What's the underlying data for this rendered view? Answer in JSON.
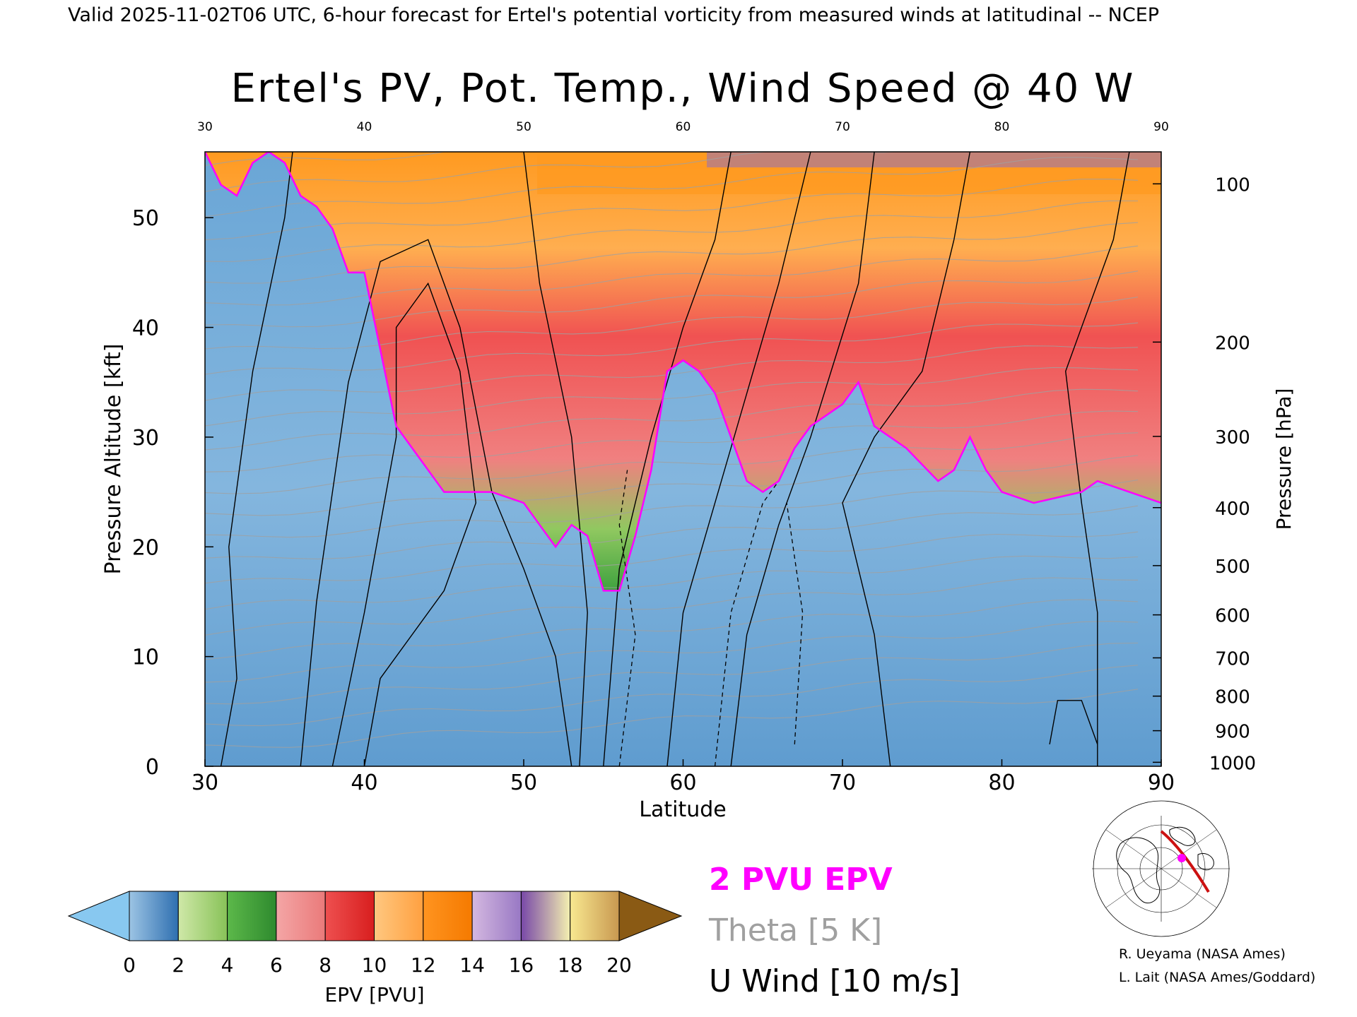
{
  "header": {
    "valid_line": "Valid 2025-11-02T06 UTC, 6-hour forecast for Ertel's potential vorticity from measured winds at latitudinal -- NCEP"
  },
  "chart_data": {
    "type": "heatmap",
    "title": "Ertel's PV, Pot. Temp., Wind Speed @ 40 W",
    "xlabel": "Latitude",
    "ylabel": "Pressure Altitude [kft]",
    "ylabel_right": "Pressure [hPa]",
    "xlim": [
      30,
      90
    ],
    "ylim": [
      0,
      56
    ],
    "x_ticks": [
      30,
      40,
      50,
      60,
      70,
      80,
      90
    ],
    "x_tick_labels": [
      "30",
      "40",
      "50",
      "60",
      "70",
      "80",
      "90"
    ],
    "y_ticks": [
      0,
      10,
      20,
      30,
      40,
      50
    ],
    "y_tick_labels": [
      "0",
      "10",
      "20",
      "30",
      "40",
      "50"
    ],
    "pressure_ticks": [
      {
        "hpa": 100,
        "label": "100"
      },
      {
        "hpa": 200,
        "label": "200"
      },
      {
        "hpa": 300,
        "label": "300"
      },
      {
        "hpa": 400,
        "label": "400"
      },
      {
        "hpa": 500,
        "label": "500"
      },
      {
        "hpa": 600,
        "label": "600"
      },
      {
        "hpa": 700,
        "label": "700"
      },
      {
        "hpa": 800,
        "label": "800"
      },
      {
        "hpa": 900,
        "label": "900"
      },
      {
        "hpa": 1000,
        "label": "1000"
      }
    ],
    "tropopause_2pvu_kft": [
      [
        30,
        56
      ],
      [
        31,
        53
      ],
      [
        32,
        52
      ],
      [
        33,
        55
      ],
      [
        34,
        56
      ],
      [
        35,
        55
      ],
      [
        36,
        52
      ],
      [
        37,
        51
      ],
      [
        38,
        49
      ],
      [
        39,
        45
      ],
      [
        40,
        45
      ],
      [
        41,
        38
      ],
      [
        42,
        31
      ],
      [
        43,
        29
      ],
      [
        44,
        27
      ],
      [
        45,
        25
      ],
      [
        46,
        25
      ],
      [
        48,
        25
      ],
      [
        50,
        24
      ],
      [
        51,
        22
      ],
      [
        52,
        20
      ],
      [
        53,
        22
      ],
      [
        54,
        21
      ],
      [
        55,
        16
      ],
      [
        56,
        16
      ],
      [
        57,
        21
      ],
      [
        58,
        27
      ],
      [
        59,
        36
      ],
      [
        60,
        37
      ],
      [
        61,
        36
      ],
      [
        62,
        34
      ],
      [
        63,
        30
      ],
      [
        64,
        26
      ],
      [
        65,
        25
      ],
      [
        66,
        26
      ],
      [
        67,
        29
      ],
      [
        68,
        31
      ],
      [
        70,
        33
      ],
      [
        71,
        35
      ],
      [
        72,
        31
      ],
      [
        74,
        29
      ],
      [
        76,
        26
      ],
      [
        77,
        27
      ],
      [
        78,
        30
      ],
      [
        79,
        27
      ],
      [
        80,
        25
      ],
      [
        82,
        24
      ],
      [
        85,
        25
      ],
      [
        86,
        26
      ],
      [
        88,
        25
      ],
      [
        90,
        24
      ]
    ],
    "epv_colorbar": {
      "label": "EPV [PVU]",
      "ticks": [
        0,
        2,
        4,
        6,
        8,
        10,
        12,
        14,
        16,
        18,
        20
      ],
      "tick_labels": [
        "0",
        "2",
        "4",
        "6",
        "8",
        "10",
        "12",
        "14",
        "16",
        "18",
        "20"
      ],
      "under_color": "#88c8f0",
      "over_color": "#8a5a14",
      "bins": [
        {
          "from": 0,
          "to": 2,
          "colors": [
            "#9cc4e4",
            "#2e6fb0"
          ]
        },
        {
          "from": 2,
          "to": 4,
          "colors": [
            "#cfe8a8",
            "#88c258"
          ]
        },
        {
          "from": 4,
          "to": 6,
          "colors": [
            "#5cb84a",
            "#2e8a2e"
          ]
        },
        {
          "from": 6,
          "to": 8,
          "colors": [
            "#f4a6a6",
            "#ea7a7a"
          ]
        },
        {
          "from": 8,
          "to": 10,
          "colors": [
            "#ee5050",
            "#d81e1e"
          ]
        },
        {
          "from": 10,
          "to": 12,
          "colors": [
            "#ffc880",
            "#ffa040"
          ]
        },
        {
          "from": 12,
          "to": 14,
          "colors": [
            "#ff9420",
            "#f57a00"
          ]
        },
        {
          "from": 14,
          "to": 16,
          "colors": [
            "#d4b8e0",
            "#9878c4"
          ]
        },
        {
          "from": 16,
          "to": 18,
          "colors": [
            "#7848a8",
            "#f4f0b0"
          ]
        },
        {
          "from": 18,
          "to": 20,
          "colors": [
            "#f8e890",
            "#c89850"
          ]
        }
      ]
    },
    "legend": [
      {
        "text": "2 PVU EPV",
        "color": "#ff00ff"
      },
      {
        "text": "Theta [5 K]",
        "color": "#a0a0a0"
      },
      {
        "text": "U Wind [10 m/s]",
        "color": "#000000"
      }
    ],
    "credits": [
      "R. Ueyama (NASA Ames)",
      "L. Lait (NASA Ames/Goddard)"
    ]
  },
  "colors": {
    "tropopause": "#ff00ff",
    "theta": "#a0a0a0",
    "wind": "#000000"
  },
  "map_inset": {
    "icon": "globe-map-icon",
    "track_color": "#cc1111",
    "marker_color": "#ff00ff"
  }
}
